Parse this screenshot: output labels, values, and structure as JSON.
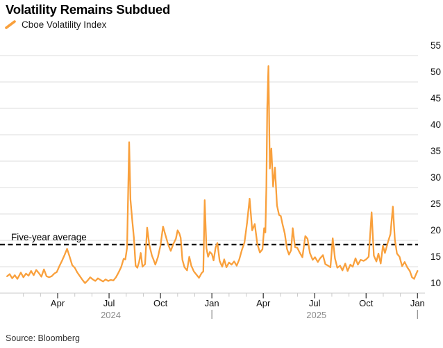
{
  "header": {
    "title": "Volatility Remains Subdued"
  },
  "legend": {
    "label": "Cboe Volatility Index",
    "marker_color": "#F9A03C"
  },
  "annotation": {
    "average_label": "Five-year average"
  },
  "source": {
    "text": "Source: Bloomberg"
  },
  "chart_data": {
    "type": "line",
    "title": "Volatility Remains Subdued",
    "xlabel": "",
    "ylabel": "",
    "x_range": "Jan 2024 - Jan 2026",
    "ylim": [
      10,
      55
    ],
    "grid": true,
    "legend_position": "top-left",
    "y_axis": {
      "ticks": [
        10,
        15,
        20,
        25,
        30,
        35,
        40,
        45,
        50,
        55
      ],
      "side": "right"
    },
    "x_axis": {
      "major_ticks": [
        {
          "t": 3,
          "label": "Apr"
        },
        {
          "t": 6,
          "label": "Jul"
        },
        {
          "t": 9,
          "label": "Oct"
        },
        {
          "t": 12,
          "label": "Jan"
        },
        {
          "t": 15,
          "label": "Apr"
        },
        {
          "t": 18,
          "label": "Jul"
        },
        {
          "t": 21,
          "label": "Oct"
        },
        {
          "t": 24,
          "label": "Jan"
        }
      ],
      "years": [
        {
          "label": "2024",
          "t": 6.1
        },
        {
          "label": "2025",
          "t": 18.1
        }
      ],
      "year_separators": [
        12,
        24
      ],
      "months_per_minor_tick": 1
    },
    "average_line": {
      "label": "Five-year average",
      "value": 19.2,
      "style": "dashed-black"
    },
    "series": [
      {
        "name": "Cboe Volatility Index",
        "color": "#F9A03C",
        "points_format": "[months_since_jan_2024, vix_value]",
        "points": [
          [
            0.05,
            13.2
          ],
          [
            0.2,
            13.6
          ],
          [
            0.35,
            12.8
          ],
          [
            0.5,
            13.4
          ],
          [
            0.65,
            12.7
          ],
          [
            0.85,
            13.9
          ],
          [
            1.0,
            13.0
          ],
          [
            1.15,
            13.7
          ],
          [
            1.3,
            13.3
          ],
          [
            1.45,
            14.2
          ],
          [
            1.6,
            13.4
          ],
          [
            1.75,
            14.4
          ],
          [
            1.9,
            13.8
          ],
          [
            2.05,
            13.1
          ],
          [
            2.2,
            14.5
          ],
          [
            2.35,
            13.2
          ],
          [
            2.5,
            13.0
          ],
          [
            2.65,
            13.2
          ],
          [
            2.8,
            13.7
          ],
          [
            2.95,
            14.0
          ],
          [
            3.1,
            15.1
          ],
          [
            3.25,
            16.1
          ],
          [
            3.4,
            17.2
          ],
          [
            3.55,
            18.4
          ],
          [
            3.7,
            16.9
          ],
          [
            3.85,
            15.3
          ],
          [
            4.0,
            14.8
          ],
          [
            4.15,
            13.9
          ],
          [
            4.3,
            13.2
          ],
          [
            4.45,
            12.5
          ],
          [
            4.6,
            11.9
          ],
          [
            4.75,
            12.4
          ],
          [
            4.9,
            13.0
          ],
          [
            5.05,
            12.6
          ],
          [
            5.2,
            12.3
          ],
          [
            5.35,
            12.8
          ],
          [
            5.5,
            12.5
          ],
          [
            5.65,
            12.2
          ],
          [
            5.8,
            12.6
          ],
          [
            5.95,
            12.3
          ],
          [
            6.1,
            12.5
          ],
          [
            6.25,
            12.4
          ],
          [
            6.4,
            13.0
          ],
          [
            6.55,
            13.9
          ],
          [
            6.7,
            14.9
          ],
          [
            6.85,
            16.5
          ],
          [
            6.95,
            16.4
          ],
          [
            7.05,
            18.6
          ],
          [
            7.17,
            38.6
          ],
          [
            7.25,
            27.7
          ],
          [
            7.35,
            23.9
          ],
          [
            7.45,
            20.4
          ],
          [
            7.55,
            15.2
          ],
          [
            7.65,
            14.8
          ],
          [
            7.75,
            15.9
          ],
          [
            7.85,
            17.6
          ],
          [
            7.95,
            15.0
          ],
          [
            8.1,
            15.5
          ],
          [
            8.22,
            22.4
          ],
          [
            8.35,
            19.1
          ],
          [
            8.5,
            17.1
          ],
          [
            8.6,
            16.3
          ],
          [
            8.7,
            15.4
          ],
          [
            8.85,
            16.8
          ],
          [
            9.0,
            19.0
          ],
          [
            9.15,
            22.6
          ],
          [
            9.3,
            20.9
          ],
          [
            9.45,
            19.2
          ],
          [
            9.6,
            18.0
          ],
          [
            9.75,
            19.3
          ],
          [
            9.9,
            20.3
          ],
          [
            10.0,
            21.9
          ],
          [
            10.1,
            21.3
          ],
          [
            10.18,
            20.5
          ],
          [
            10.28,
            16.3
          ],
          [
            10.4,
            14.9
          ],
          [
            10.55,
            14.3
          ],
          [
            10.68,
            16.9
          ],
          [
            10.8,
            15.2
          ],
          [
            10.95,
            14.1
          ],
          [
            11.1,
            13.5
          ],
          [
            11.25,
            12.9
          ],
          [
            11.4,
            13.8
          ],
          [
            11.5,
            14.1
          ],
          [
            11.58,
            27.6
          ],
          [
            11.68,
            18.5
          ],
          [
            11.78,
            16.9
          ],
          [
            11.88,
            17.8
          ],
          [
            12.0,
            17.4
          ],
          [
            12.1,
            16.2
          ],
          [
            12.22,
            18.7
          ],
          [
            12.32,
            19.5
          ],
          [
            12.45,
            16.1
          ],
          [
            12.6,
            15.0
          ],
          [
            12.72,
            16.4
          ],
          [
            12.85,
            14.9
          ],
          [
            13.0,
            15.8
          ],
          [
            13.15,
            15.4
          ],
          [
            13.3,
            16.0
          ],
          [
            13.45,
            15.2
          ],
          [
            13.6,
            16.4
          ],
          [
            13.75,
            18.2
          ],
          [
            13.9,
            19.6
          ],
          [
            14.05,
            23.3
          ],
          [
            14.2,
            27.9
          ],
          [
            14.35,
            21.9
          ],
          [
            14.5,
            23.1
          ],
          [
            14.65,
            19.3
          ],
          [
            14.8,
            17.7
          ],
          [
            14.95,
            18.3
          ],
          [
            15.05,
            22.3
          ],
          [
            15.12,
            21.5
          ],
          [
            15.18,
            30.0
          ],
          [
            15.23,
            45.3
          ],
          [
            15.3,
            53.0
          ],
          [
            15.38,
            33.6
          ],
          [
            15.47,
            37.4
          ],
          [
            15.57,
            30.2
          ],
          [
            15.68,
            33.8
          ],
          [
            15.8,
            26.6
          ],
          [
            15.92,
            24.8
          ],
          [
            16.02,
            24.6
          ],
          [
            16.12,
            23.1
          ],
          [
            16.25,
            21.3
          ],
          [
            16.38,
            18.4
          ],
          [
            16.5,
            17.3
          ],
          [
            16.62,
            18.1
          ],
          [
            16.72,
            22.3
          ],
          [
            16.85,
            18.7
          ],
          [
            16.98,
            18.6
          ],
          [
            17.12,
            17.7
          ],
          [
            17.28,
            16.8
          ],
          [
            17.45,
            20.8
          ],
          [
            17.58,
            20.3
          ],
          [
            17.72,
            17.6
          ],
          [
            17.88,
            16.3
          ],
          [
            18.02,
            16.8
          ],
          [
            18.18,
            15.9
          ],
          [
            18.32,
            16.6
          ],
          [
            18.48,
            17.2
          ],
          [
            18.62,
            15.5
          ],
          [
            18.78,
            15.2
          ],
          [
            18.92,
            14.9
          ],
          [
            19.05,
            20.4
          ],
          [
            19.18,
            16.6
          ],
          [
            19.32,
            14.8
          ],
          [
            19.48,
            15.2
          ],
          [
            19.62,
            14.3
          ],
          [
            19.78,
            15.6
          ],
          [
            19.92,
            14.2
          ],
          [
            20.08,
            15.4
          ],
          [
            20.22,
            15.0
          ],
          [
            20.38,
            16.6
          ],
          [
            20.52,
            15.4
          ],
          [
            20.68,
            16.3
          ],
          [
            20.85,
            16.1
          ],
          [
            21.0,
            16.4
          ],
          [
            21.15,
            16.9
          ],
          [
            21.32,
            25.3
          ],
          [
            21.45,
            17.1
          ],
          [
            21.6,
            16.0
          ],
          [
            21.72,
            17.5
          ],
          [
            21.85,
            15.6
          ],
          [
            21.98,
            19.0
          ],
          [
            22.1,
            17.6
          ],
          [
            22.25,
            19.4
          ],
          [
            22.42,
            21.2
          ],
          [
            22.56,
            26.4
          ],
          [
            22.68,
            20.1
          ],
          [
            22.8,
            17.5
          ],
          [
            22.95,
            16.9
          ],
          [
            23.1,
            15.1
          ],
          [
            23.25,
            15.9
          ],
          [
            23.4,
            14.9
          ],
          [
            23.55,
            14.2
          ],
          [
            23.68,
            13.0
          ],
          [
            23.8,
            12.7
          ],
          [
            23.9,
            13.5
          ],
          [
            24.0,
            14.2
          ]
        ]
      }
    ]
  }
}
